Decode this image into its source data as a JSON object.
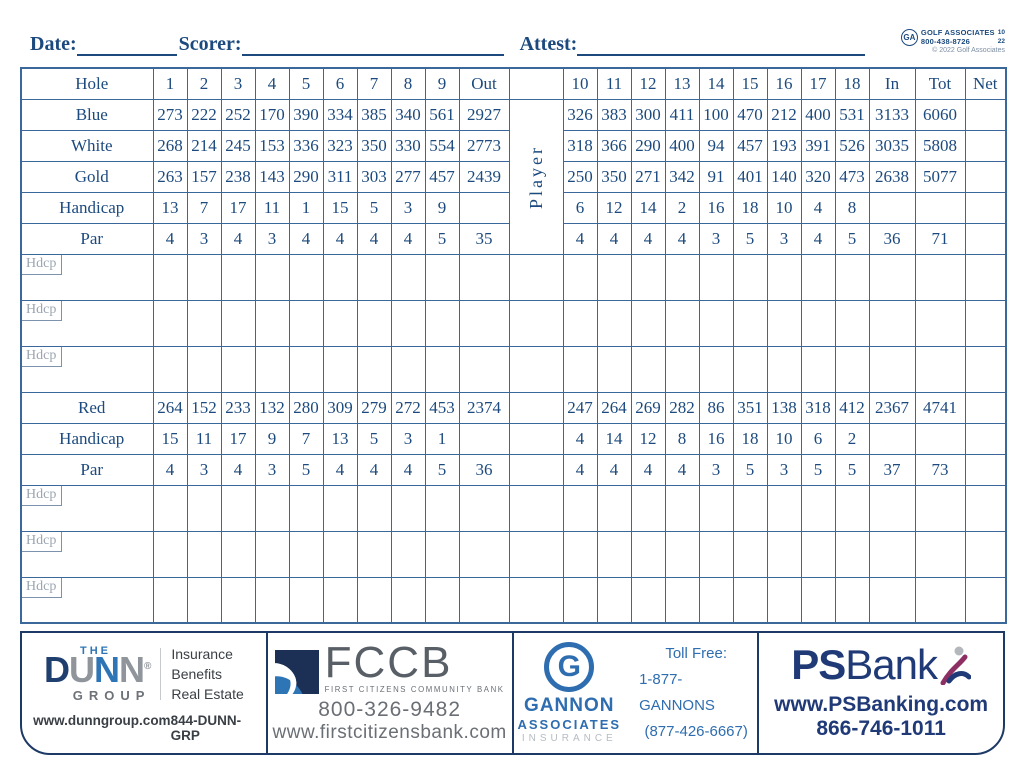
{
  "header": {
    "date_label": "Date:",
    "scorer_label": "Scorer:",
    "attest_label": "Attest:",
    "ga": {
      "monogram": "GA",
      "line1": "GOLF ASSOCIATES",
      "line2": "800-438-8726",
      "num_top": "10",
      "num_bottom": "22",
      "copyright": "© 2022 Golf Associates"
    }
  },
  "table": {
    "player_label": "Player",
    "hdcp_label": "Hdcp",
    "columns": {
      "label": "Hole",
      "front": [
        "1",
        "2",
        "3",
        "4",
        "5",
        "6",
        "7",
        "8",
        "9"
      ],
      "out": "Out",
      "back": [
        "10",
        "11",
        "12",
        "13",
        "14",
        "15",
        "16",
        "17",
        "18"
      ],
      "in": "In",
      "tot": "Tot",
      "net": "Net"
    },
    "rows": [
      {
        "type": "data",
        "label": "Blue",
        "front": [
          "273",
          "222",
          "252",
          "170",
          "390",
          "334",
          "385",
          "340",
          "561"
        ],
        "out": "2927",
        "back": [
          "326",
          "383",
          "300",
          "411",
          "100",
          "470",
          "212",
          "400",
          "531"
        ],
        "in": "3133",
        "tot": "6060",
        "net": ""
      },
      {
        "type": "data",
        "label": "White",
        "front": [
          "268",
          "214",
          "245",
          "153",
          "336",
          "323",
          "350",
          "330",
          "554"
        ],
        "out": "2773",
        "back": [
          "318",
          "366",
          "290",
          "400",
          "94",
          "457",
          "193",
          "391",
          "526"
        ],
        "in": "3035",
        "tot": "5808",
        "net": ""
      },
      {
        "type": "data",
        "label": "Gold",
        "front": [
          "263",
          "157",
          "238",
          "143",
          "290",
          "311",
          "303",
          "277",
          "457"
        ],
        "out": "2439",
        "back": [
          "250",
          "350",
          "271",
          "342",
          "91",
          "401",
          "140",
          "320",
          "473"
        ],
        "in": "2638",
        "tot": "5077",
        "net": ""
      },
      {
        "type": "data",
        "label": "Handicap",
        "front": [
          "13",
          "7",
          "17",
          "11",
          "1",
          "15",
          "5",
          "3",
          "9"
        ],
        "out": "",
        "back": [
          "6",
          "12",
          "14",
          "2",
          "16",
          "18",
          "10",
          "4",
          "8"
        ],
        "in": "",
        "tot": "",
        "net": ""
      },
      {
        "type": "data",
        "label": "Par",
        "front": [
          "4",
          "3",
          "4",
          "3",
          "4",
          "4",
          "4",
          "4",
          "5"
        ],
        "out": "35",
        "back": [
          "4",
          "4",
          "4",
          "4",
          "3",
          "5",
          "3",
          "4",
          "5"
        ],
        "in": "36",
        "tot": "71",
        "net": ""
      },
      {
        "type": "hdcp"
      },
      {
        "type": "hdcp"
      },
      {
        "type": "hdcp"
      },
      {
        "type": "data",
        "label": "Red",
        "front": [
          "264",
          "152",
          "233",
          "132",
          "280",
          "309",
          "279",
          "272",
          "453"
        ],
        "out": "2374",
        "back": [
          "247",
          "264",
          "269",
          "282",
          "86",
          "351",
          "138",
          "318",
          "412"
        ],
        "in": "2367",
        "tot": "4741",
        "net": ""
      },
      {
        "type": "data",
        "label": "Handicap",
        "front": [
          "15",
          "11",
          "17",
          "9",
          "7",
          "13",
          "5",
          "3",
          "1"
        ],
        "out": "",
        "back": [
          "4",
          "14",
          "12",
          "8",
          "16",
          "18",
          "10",
          "6",
          "2"
        ],
        "in": "",
        "tot": "",
        "net": ""
      },
      {
        "type": "data",
        "label": "Par",
        "front": [
          "4",
          "3",
          "4",
          "3",
          "5",
          "4",
          "4",
          "4",
          "5"
        ],
        "out": "36",
        "back": [
          "4",
          "4",
          "4",
          "4",
          "3",
          "5",
          "3",
          "5",
          "5"
        ],
        "in": "37",
        "tot": "73",
        "net": ""
      },
      {
        "type": "hdcp"
      },
      {
        "type": "hdcp"
      },
      {
        "type": "hdcp"
      }
    ]
  },
  "sponsors": {
    "dunn": {
      "the": "THE",
      "name_d": "D",
      "name_u": "U",
      "name_n1": "N",
      "name_n2": "N",
      "reg": "®",
      "group": "GROUP",
      "service1": "Insurance",
      "service2": "Benefits",
      "service3": "Real Estate",
      "website": "www.dunngroup.com",
      "phone": "844-DUNN-GRP"
    },
    "fccb": {
      "name": "FCCB",
      "tagline": "FIRST CITIZENS COMMUNITY BANK",
      "phone": "800-326-9482",
      "website": "www.firstcitizensbank.com"
    },
    "gannon": {
      "monogram": "G",
      "name": "GANNON",
      "name2": "ASSOCIATES",
      "tagline": "INSURANCE",
      "tollfree_label": "Toll Free:",
      "phone1": "1-877-GANNONS",
      "phone2": "(877-426-6667)"
    },
    "psbank": {
      "name_bold": "PS",
      "name_rest": "Bank",
      "website": "www.PSBanking.com",
      "phone": "866-746-1011"
    }
  },
  "colors": {
    "card_text_navy": "#1c4a7e",
    "grid_border_blue": "#3a689a",
    "hdcp_gray": "#9aa5b1",
    "sponsor_border_navy": "#1d3a66",
    "brand_blue": "#2e75b6",
    "brand_gray": "#8f959b",
    "psbank_navy": "#203a77",
    "gannon_blue": "#2e6db0"
  }
}
